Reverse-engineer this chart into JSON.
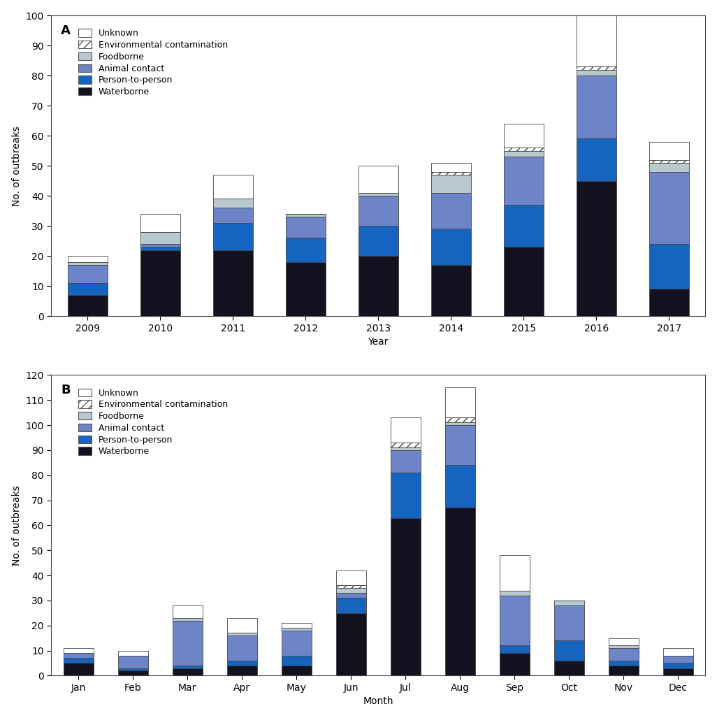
{
  "panel_a": {
    "years": [
      "2009",
      "2010",
      "2011",
      "2012",
      "2013",
      "2014",
      "2015",
      "2016",
      "2017"
    ],
    "waterborne": [
      7,
      22,
      22,
      18,
      20,
      17,
      23,
      45,
      9
    ],
    "person_to_person": [
      4,
      1,
      9,
      8,
      10,
      12,
      14,
      14,
      15
    ],
    "animal_contact": [
      6,
      1,
      5,
      7,
      10,
      12,
      16,
      21,
      24
    ],
    "foodborne": [
      1,
      4,
      3,
      1,
      1,
      6,
      2,
      2,
      3
    ],
    "environmental_contam": [
      0,
      0,
      0,
      0,
      0,
      1,
      1,
      1,
      1
    ],
    "unknown": [
      2,
      6,
      8,
      0,
      9,
      3,
      8,
      17,
      6
    ],
    "ylim": [
      0,
      100
    ],
    "ylabel": "No. of outbreaks",
    "xlabel": "Year",
    "panel_label": "A"
  },
  "panel_b": {
    "months": [
      "Jan",
      "Feb",
      "Mar",
      "Apr",
      "May",
      "Jun",
      "Jul",
      "Aug",
      "Sep",
      "Oct",
      "Nov",
      "Dec"
    ],
    "waterborne": [
      5,
      2,
      3,
      4,
      4,
      25,
      63,
      67,
      9,
      6,
      4,
      3
    ],
    "person_to_person": [
      2,
      1,
      1,
      2,
      4,
      6,
      18,
      17,
      3,
      8,
      2,
      2
    ],
    "animal_contact": [
      2,
      5,
      18,
      10,
      10,
      2,
      9,
      16,
      20,
      14,
      5,
      3
    ],
    "foodborne": [
      0,
      0,
      1,
      1,
      1,
      2,
      1,
      1,
      2,
      2,
      1,
      0
    ],
    "environmental_contam": [
      0,
      0,
      0,
      0,
      0,
      1,
      2,
      2,
      0,
      0,
      0,
      0
    ],
    "unknown": [
      2,
      2,
      5,
      6,
      2,
      6,
      10,
      12,
      14,
      0,
      3,
      3
    ],
    "ylim": [
      0,
      120
    ],
    "ylabel": "No. of outbreaks",
    "xlabel": "Month",
    "panel_label": "B"
  },
  "colors": {
    "waterborne": "#111120",
    "person_to_person": "#1565c0",
    "animal_contact": "#6d84c8",
    "foodborne": "#b8cad0",
    "unknown": "#ffffff"
  },
  "bar_edge_color": "#444444",
  "bar_width": 0.55
}
